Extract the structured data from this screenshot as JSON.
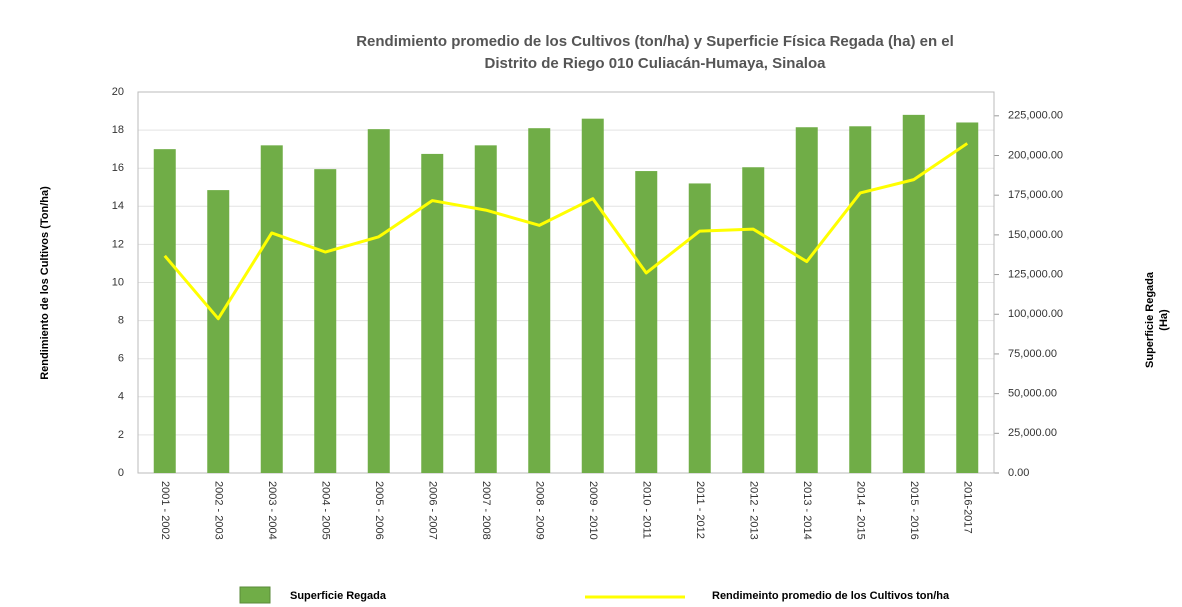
{
  "chart_data": {
    "type": "bar_line",
    "title": [
      "Rendimiento promedio de los Cultivos (ton/ha)  y Superficie Física Regada  (ha)  en el",
      "Distrito de Riego  010 Culiacán-Humaya, Sinaloa"
    ],
    "ylabel": "Rendimiento de los Cultivos  (Ton/ha)",
    "y2label": [
      "Superficie  Regada",
      "(Ha)"
    ],
    "categories": [
      "2001 - 2002",
      "2002 - 2003",
      "2003 - 2004",
      "2004 - 2005",
      "2005 - 2006",
      "2006 - 2007",
      "2007 - 2008",
      "2008 - 2009",
      "2009 - 2010",
      "2010 - 2011",
      "2011 - 2012",
      "2012 - 2013",
      "2013 - 2014",
      "2014 - 2015",
      "2015 - 2016",
      "2016-2017"
    ],
    "series": [
      {
        "name": "Superficie Regada",
        "type": "bar",
        "axis": "y2",
        "color": "#70ad47",
        "values": [
          204000,
          178200,
          206400,
          191400,
          216600,
          201000,
          206400,
          217200,
          223200,
          190200,
          182400,
          192600,
          217800,
          218400,
          225600,
          220800
        ]
      },
      {
        "name": "Rendimeinto promedio de los Cultivos  ton/ha",
        "type": "line",
        "axis": "y",
        "color": "#ffff00",
        "values": [
          11.4,
          8.1,
          12.6,
          11.6,
          12.4,
          14.3,
          13.8,
          13.0,
          14.4,
          10.5,
          12.7,
          12.8,
          11.1,
          14.7,
          15.4,
          17.3
        ]
      }
    ],
    "ylim": [
      0,
      20
    ],
    "yticks": [
      0,
      2,
      4,
      6,
      8,
      10,
      12,
      14,
      16,
      18,
      20
    ],
    "y2lim": [
      0,
      240000
    ],
    "y2ticks": [
      {
        "value": 0,
        "label": "0.00"
      },
      {
        "value": 25000,
        "label": "25,000.00"
      },
      {
        "value": 50000,
        "label": "50,000.00"
      },
      {
        "value": 75000,
        "label": "75,000.00"
      },
      {
        "value": 100000,
        "label": "100,000.00"
      },
      {
        "value": 125000,
        "label": "125,000.00"
      },
      {
        "value": 150000,
        "label": "150,000.00"
      },
      {
        "value": 175000,
        "label": "175,000.00"
      },
      {
        "value": 200000,
        "label": "200,000.00"
      },
      {
        "value": 225000,
        "label": "225,000.00"
      }
    ],
    "grid": true,
    "legend": "bottom"
  }
}
